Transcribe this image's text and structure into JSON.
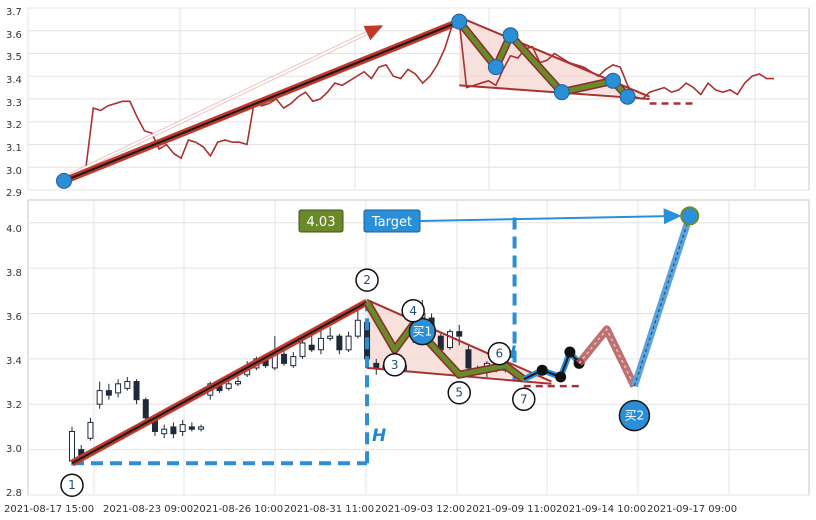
{
  "chart_data": [
    {
      "type": "line",
      "panel": "top",
      "ylim": [
        2.9,
        3.7
      ],
      "y_ticks": [
        "3.7",
        "3.6",
        "3.5",
        "3.4",
        "3.3",
        "3.2",
        "3.1",
        "3.0",
        "2.9"
      ],
      "grid": true,
      "price_series": [
        2.94,
        2.97,
        2.98,
        3.0,
        3.26,
        3.25,
        3.27,
        3.28,
        3.29,
        3.29,
        3.22,
        3.16,
        3.15,
        3.08,
        3.1,
        3.06,
        3.04,
        3.12,
        3.11,
        3.09,
        3.05,
        3.11,
        3.12,
        3.11,
        3.11,
        3.1,
        3.29,
        3.27,
        3.28,
        3.3,
        3.26,
        3.28,
        3.31,
        3.33,
        3.29,
        3.3,
        3.33,
        3.37,
        3.36,
        3.38,
        3.4,
        3.42,
        3.39,
        3.44,
        3.45,
        3.4,
        3.39,
        3.43,
        3.41,
        3.37,
        3.4,
        3.45,
        3.52,
        3.62,
        3.64,
        3.35,
        3.36,
        3.37,
        3.38,
        3.36,
        3.43,
        3.49,
        3.48,
        3.52,
        3.53,
        3.46,
        3.47,
        3.5,
        3.48,
        3.46,
        3.45,
        3.44,
        3.42,
        3.4,
        3.43,
        3.45,
        3.44,
        3.36,
        3.31,
        3.3,
        3.33,
        3.34,
        3.35,
        3.33,
        3.34,
        3.37,
        3.35,
        3.32,
        3.37,
        3.34,
        3.33,
        3.34,
        3.32,
        3.37,
        3.4,
        3.41,
        3.39,
        3.39
      ],
      "pivots": [
        {
          "x": 0,
          "y": 2.94
        },
        {
          "x": 54,
          "y": 3.64
        },
        {
          "x": 59,
          "y": 3.44
        },
        {
          "x": 61,
          "y": 3.58
        },
        {
          "x": 68,
          "y": 3.33
        },
        {
          "x": 75,
          "y": 3.38
        },
        {
          "x": 77,
          "y": 3.31
        }
      ],
      "trend_upper": [
        {
          "x": 54,
          "y": 3.66
        },
        {
          "x": 80,
          "y": 3.31
        }
      ],
      "trend_lower": [
        {
          "x": 54,
          "y": 3.36
        },
        {
          "x": 80,
          "y": 3.3
        }
      ],
      "dashed_level": {
        "from_x": 80,
        "to_x": 86,
        "y": 3.28
      }
    },
    {
      "type": "candlestick",
      "panel": "bottom",
      "ylim": [
        2.8,
        4.1
      ],
      "y_ticks": [
        "4.0",
        "3.8",
        "3.6",
        "3.4",
        "3.2",
        "3.0",
        "2.8"
      ],
      "x_ticks": [
        "2021-08-17 15:00",
        "2021-08-23 09:00",
        "2021-08-26 10:00",
        "2021-08-31 11:00",
        "2021-09-03 12:00",
        "2021-09-09 11:00",
        "2021-09-14 10:00",
        "2021-09-17 09:00"
      ],
      "grid": true,
      "candles": [
        [
          2.95,
          3.08,
          3.1,
          2.93
        ],
        [
          3.0,
          2.97,
          3.02,
          2.96
        ],
        [
          3.05,
          3.12,
          3.14,
          3.04
        ],
        [
          3.2,
          3.26,
          3.3,
          3.18
        ],
        [
          3.26,
          3.24,
          3.29,
          3.22
        ],
        [
          3.25,
          3.29,
          3.31,
          3.23
        ],
        [
          3.27,
          3.3,
          3.32,
          3.26
        ],
        [
          3.3,
          3.22,
          3.31,
          3.2
        ],
        [
          3.22,
          3.14,
          3.23,
          3.12
        ],
        [
          3.13,
          3.08,
          3.15,
          3.06
        ],
        [
          3.07,
          3.09,
          3.11,
          3.05
        ],
        [
          3.1,
          3.07,
          3.12,
          3.05
        ],
        [
          3.08,
          3.11,
          3.13,
          3.06
        ],
        [
          3.1,
          3.09,
          3.12,
          3.08
        ],
        [
          3.09,
          3.1,
          3.11,
          3.08
        ],
        [
          3.24,
          3.29,
          3.3,
          3.22
        ],
        [
          3.28,
          3.26,
          3.3,
          3.25
        ],
        [
          3.27,
          3.29,
          3.31,
          3.26
        ],
        [
          3.29,
          3.3,
          3.32,
          3.28
        ],
        [
          3.33,
          3.37,
          3.39,
          3.32
        ],
        [
          3.36,
          3.4,
          3.41,
          3.35
        ],
        [
          3.4,
          3.37,
          3.42,
          3.36
        ],
        [
          3.36,
          3.42,
          3.5,
          3.35
        ],
        [
          3.42,
          3.38,
          3.45,
          3.37
        ],
        [
          3.37,
          3.41,
          3.43,
          3.36
        ],
        [
          3.41,
          3.47,
          3.49,
          3.4
        ],
        [
          3.46,
          3.44,
          3.5,
          3.43
        ],
        [
          3.44,
          3.49,
          3.55,
          3.42
        ],
        [
          3.49,
          3.5,
          3.54,
          3.48
        ],
        [
          3.5,
          3.44,
          3.51,
          3.42
        ],
        [
          3.44,
          3.5,
          3.52,
          3.43
        ],
        [
          3.5,
          3.57,
          3.62,
          3.49
        ],
        [
          3.56,
          3.4,
          3.57,
          3.38
        ],
        [
          3.38,
          3.36,
          3.4,
          3.33
        ],
        [
          3.36,
          3.37,
          3.38,
          3.35
        ],
        [
          3.36,
          3.35,
          3.38,
          3.34
        ],
        [
          3.35,
          3.37,
          3.38,
          3.34
        ],
        [
          3.5,
          3.55,
          3.58,
          3.47
        ],
        [
          3.58,
          3.6,
          3.66,
          3.56
        ],
        [
          3.58,
          3.5,
          3.6,
          3.48
        ],
        [
          3.5,
          3.44,
          3.51,
          3.42
        ],
        [
          3.45,
          3.52,
          3.53,
          3.44
        ],
        [
          3.52,
          3.5,
          3.55,
          3.46
        ],
        [
          3.44,
          3.36,
          3.46,
          3.33
        ],
        [
          3.36,
          3.34,
          3.37,
          3.33
        ],
        [
          3.34,
          3.38,
          3.39,
          3.32
        ],
        [
          3.37,
          3.35,
          3.38,
          3.34
        ],
        [
          3.35,
          3.36,
          3.37,
          3.34
        ]
      ],
      "pattern_path": [
        {
          "label": "1",
          "x": 0,
          "y": 2.94
        },
        {
          "label": "2",
          "x": 32,
          "y": 3.65
        },
        {
          "label": "3",
          "x": 35,
          "y": 3.44
        },
        {
          "label": "4",
          "x": 37,
          "y": 3.55
        },
        {
          "label": "5",
          "x": 42,
          "y": 3.33
        },
        {
          "label": "6",
          "x": 47,
          "y": 3.37
        },
        {
          "label": "7",
          "x": 49,
          "y": 3.31
        }
      ],
      "recent_points": [
        {
          "x": 51,
          "y": 3.35
        },
        {
          "x": 53,
          "y": 3.32
        },
        {
          "x": 54,
          "y": 3.43
        },
        {
          "x": 55,
          "y": 3.38
        }
      ],
      "projection": [
        {
          "x": 55,
          "y": 3.38
        },
        {
          "x": 58,
          "y": 3.53
        },
        {
          "x": 61,
          "y": 3.28
        }
      ],
      "target_path": [
        {
          "x": 61,
          "y": 3.28
        },
        {
          "x": 67,
          "y": 4.03
        }
      ],
      "trend_upper": [
        {
          "x": 32,
          "y": 3.66
        },
        {
          "x": 52,
          "y": 3.3
        }
      ],
      "trend_lower": [
        {
          "x": 32,
          "y": 3.36
        },
        {
          "x": 52,
          "y": 3.29
        }
      ],
      "dashed_level": {
        "from_x": 49,
        "to_x": 55,
        "y": 3.28
      },
      "measure_left": {
        "x": 32,
        "from_y": 2.94,
        "to_y": 3.65,
        "base_from_x": 0
      },
      "measure_right": {
        "x": 48,
        "from_y": 3.3,
        "to_y": 4.03
      },
      "target_value": "4.03",
      "target_label": "Target",
      "h_label": "H",
      "buy_labels": [
        "买1",
        "买2"
      ],
      "buy1": {
        "x": 38,
        "y": 3.52
      },
      "buy2": {
        "x": 61,
        "y": 3.15
      }
    }
  ],
  "colors": {
    "candle": "#1e2a3a",
    "trend_red": "#c0392b",
    "trend_dark": "#1a1a1a",
    "pattern_green": "#6a8a2a",
    "pattern_edge": "#8b2c2c",
    "marker_blue": "#2b8fd8",
    "target_blue": "#2b8fd8",
    "badge_green": "#6a8a2a",
    "fill_pink": "#f6d5d0"
  }
}
